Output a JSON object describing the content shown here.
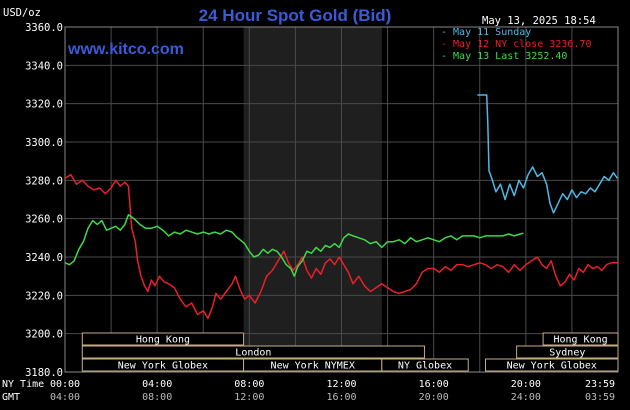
{
  "header": {
    "title": "24 Hour Spot Gold (Bid)",
    "website": "www.kitco.com",
    "datetime": "May 13, 2025 18:54",
    "unit_label": "USD/oz"
  },
  "legend": [
    {
      "label": "May 11 Sunday",
      "color": "#4fb8e6"
    },
    {
      "label": "May 12 NY close 3236.70",
      "color": "#e8202a"
    },
    {
      "label": "May 13 Last 3252.40",
      "color": "#3dd94a"
    }
  ],
  "colors": {
    "background": "#000000",
    "grid": "#4a4a4a",
    "axis_text": "#ffffff",
    "title": "#3a5bd8",
    "nymex_band": "#1f1f1f",
    "session_box": "#c7ad7f"
  },
  "sessions": {
    "row1": [
      {
        "label": "Hong Kong",
        "start": 0.75,
        "end": 7.75
      },
      {
        "label": "Hong Kong",
        "start": 20.75,
        "end": 24
      }
    ],
    "row2": [
      {
        "label": "London",
        "start": 0.75,
        "end": 15.6
      },
      {
        "label": "Sydney",
        "start": 19.6,
        "end": 24
      }
    ],
    "row3": [
      {
        "label": "New York Globex",
        "start": 0.75,
        "end": 7.75
      },
      {
        "label": "New York NYMEX",
        "start": 7.75,
        "end": 13.75
      },
      {
        "label": "NY Globex",
        "start": 13.75,
        "end": 17.5
      },
      {
        "label": "New York Globex",
        "start": 18.25,
        "end": 24
      }
    ]
  },
  "row_labels": {
    "ny_time": "NY Time",
    "gmt": "GMT"
  },
  "chart_data": {
    "type": "line",
    "title": "24 Hour Spot Gold (Bid)",
    "ylabel": "USD/oz",
    "ylim": [
      3180,
      3360
    ],
    "yticks": [
      "3360.0",
      "3340.0",
      "3320.0",
      "3300.0",
      "3280.0",
      "3260.0",
      "3240.0",
      "3220.0",
      "3200.0",
      "3180.0"
    ],
    "x_ticks_ny": [
      "00:00",
      "04:00",
      "08:00",
      "12:00",
      "16:00",
      "20:00",
      "23:59"
    ],
    "x_ticks_gmt": [
      "04:00",
      "08:00",
      "12:00",
      "16:00",
      "20:00",
      "24:00",
      "03:59"
    ],
    "xlim": [
      0,
      24
    ],
    "grid": true,
    "legend_position": "top-right",
    "series": [
      {
        "name": "May 11 Sunday",
        "color": "#4fb8e6",
        "points": [
          [
            17.9,
            3324.5
          ],
          [
            18.3,
            3324.5
          ],
          [
            18.35,
            3310
          ],
          [
            18.4,
            3285
          ],
          [
            18.55,
            3280
          ],
          [
            18.7,
            3274
          ],
          [
            18.9,
            3278
          ],
          [
            19.1,
            3270
          ],
          [
            19.3,
            3278
          ],
          [
            19.5,
            3272
          ],
          [
            19.7,
            3280
          ],
          [
            19.9,
            3276
          ],
          [
            20.1,
            3283
          ],
          [
            20.3,
            3287
          ],
          [
            20.5,
            3282
          ],
          [
            20.7,
            3284
          ],
          [
            20.9,
            3278
          ],
          [
            21.05,
            3268
          ],
          [
            21.2,
            3263
          ],
          [
            21.4,
            3268
          ],
          [
            21.6,
            3273
          ],
          [
            21.8,
            3270
          ],
          [
            22.0,
            3275
          ],
          [
            22.2,
            3271
          ],
          [
            22.4,
            3274
          ],
          [
            22.6,
            3273
          ],
          [
            22.8,
            3276
          ],
          [
            23.0,
            3274
          ],
          [
            23.2,
            3278
          ],
          [
            23.4,
            3282
          ],
          [
            23.6,
            3280
          ],
          [
            23.8,
            3284
          ],
          [
            23.98,
            3281
          ]
        ]
      },
      {
        "name": "May 12 NY close 3236.70",
        "color": "#e8202a",
        "points": [
          [
            0.0,
            3281
          ],
          [
            0.25,
            3283
          ],
          [
            0.5,
            3278
          ],
          [
            0.75,
            3280
          ],
          [
            1.0,
            3277
          ],
          [
            1.25,
            3275
          ],
          [
            1.5,
            3276
          ],
          [
            1.75,
            3273
          ],
          [
            2.0,
            3276
          ],
          [
            2.2,
            3280
          ],
          [
            2.4,
            3277
          ],
          [
            2.6,
            3279
          ],
          [
            2.75,
            3277
          ],
          [
            2.9,
            3255
          ],
          [
            3.05,
            3248
          ],
          [
            3.15,
            3238
          ],
          [
            3.3,
            3230
          ],
          [
            3.45,
            3225
          ],
          [
            3.6,
            3222
          ],
          [
            3.75,
            3228
          ],
          [
            3.9,
            3225
          ],
          [
            4.1,
            3230
          ],
          [
            4.3,
            3227
          ],
          [
            4.5,
            3226
          ],
          [
            4.75,
            3224
          ],
          [
            5.0,
            3218
          ],
          [
            5.25,
            3214
          ],
          [
            5.5,
            3216
          ],
          [
            5.75,
            3210
          ],
          [
            6.0,
            3212
          ],
          [
            6.2,
            3208
          ],
          [
            6.4,
            3214
          ],
          [
            6.55,
            3221
          ],
          [
            6.75,
            3218
          ],
          [
            7.0,
            3222
          ],
          [
            7.25,
            3226
          ],
          [
            7.4,
            3230
          ],
          [
            7.6,
            3223
          ],
          [
            7.8,
            3218
          ],
          [
            8.0,
            3220
          ],
          [
            8.25,
            3216
          ],
          [
            8.5,
            3222
          ],
          [
            8.75,
            3230
          ],
          [
            9.0,
            3233
          ],
          [
            9.25,
            3238
          ],
          [
            9.5,
            3243
          ],
          [
            9.7,
            3237
          ],
          [
            9.9,
            3233
          ],
          [
            10.1,
            3236
          ],
          [
            10.3,
            3240
          ],
          [
            10.5,
            3233
          ],
          [
            10.7,
            3229
          ],
          [
            10.9,
            3234
          ],
          [
            11.1,
            3231
          ],
          [
            11.3,
            3237
          ],
          [
            11.5,
            3239
          ],
          [
            11.7,
            3236
          ],
          [
            11.9,
            3240
          ],
          [
            12.1,
            3236
          ],
          [
            12.3,
            3232
          ],
          [
            12.5,
            3226
          ],
          [
            12.75,
            3230
          ],
          [
            13.0,
            3225
          ],
          [
            13.25,
            3222
          ],
          [
            13.5,
            3224
          ],
          [
            13.75,
            3226
          ],
          [
            14.0,
            3224
          ],
          [
            14.25,
            3222
          ],
          [
            14.5,
            3221
          ],
          [
            14.75,
            3222
          ],
          [
            15.0,
            3223
          ],
          [
            15.25,
            3226
          ],
          [
            15.5,
            3232
          ],
          [
            15.75,
            3234
          ],
          [
            16.0,
            3234
          ],
          [
            16.25,
            3232
          ],
          [
            16.5,
            3235
          ],
          [
            16.75,
            3233
          ],
          [
            17.0,
            3236
          ],
          [
            17.25,
            3236
          ],
          [
            17.5,
            3235
          ],
          [
            17.75,
            3236
          ],
          [
            18.0,
            3237
          ],
          [
            18.25,
            3236
          ],
          [
            18.5,
            3234
          ],
          [
            18.75,
            3236
          ],
          [
            19.0,
            3235
          ],
          [
            19.25,
            3232
          ],
          [
            19.5,
            3236
          ],
          [
            19.75,
            3233
          ],
          [
            20.0,
            3236
          ],
          [
            20.25,
            3238
          ],
          [
            20.5,
            3240
          ],
          [
            20.7,
            3236
          ],
          [
            20.9,
            3234
          ],
          [
            21.1,
            3238
          ],
          [
            21.3,
            3230
          ],
          [
            21.5,
            3225
          ],
          [
            21.7,
            3227
          ],
          [
            21.9,
            3231
          ],
          [
            22.1,
            3228
          ],
          [
            22.3,
            3234
          ],
          [
            22.5,
            3232
          ],
          [
            22.7,
            3236
          ],
          [
            22.9,
            3234
          ],
          [
            23.1,
            3235
          ],
          [
            23.3,
            3233
          ],
          [
            23.5,
            3236
          ],
          [
            23.7,
            3237
          ],
          [
            23.98,
            3237
          ]
        ]
      },
      {
        "name": "May 13 Last 3252.40",
        "color": "#3dd94a",
        "points": [
          [
            0.0,
            3237
          ],
          [
            0.2,
            3236
          ],
          [
            0.4,
            3238
          ],
          [
            0.6,
            3244
          ],
          [
            0.8,
            3248
          ],
          [
            1.0,
            3255
          ],
          [
            1.2,
            3259
          ],
          [
            1.4,
            3257
          ],
          [
            1.6,
            3259
          ],
          [
            1.8,
            3254
          ],
          [
            2.0,
            3255
          ],
          [
            2.2,
            3256
          ],
          [
            2.4,
            3254
          ],
          [
            2.6,
            3257
          ],
          [
            2.75,
            3262
          ],
          [
            3.0,
            3260
          ],
          [
            3.25,
            3257
          ],
          [
            3.5,
            3255
          ],
          [
            3.75,
            3255
          ],
          [
            4.0,
            3256
          ],
          [
            4.25,
            3254
          ],
          [
            4.5,
            3251
          ],
          [
            4.75,
            3253
          ],
          [
            5.0,
            3252
          ],
          [
            5.25,
            3254
          ],
          [
            5.5,
            3253
          ],
          [
            5.75,
            3252
          ],
          [
            6.0,
            3253
          ],
          [
            6.25,
            3252
          ],
          [
            6.5,
            3253
          ],
          [
            6.75,
            3252
          ],
          [
            7.0,
            3254
          ],
          [
            7.25,
            3253
          ],
          [
            7.4,
            3251
          ],
          [
            7.6,
            3249
          ],
          [
            7.8,
            3247
          ],
          [
            8.0,
            3243
          ],
          [
            8.2,
            3240
          ],
          [
            8.4,
            3241
          ],
          [
            8.6,
            3244
          ],
          [
            8.8,
            3242
          ],
          [
            9.0,
            3244
          ],
          [
            9.2,
            3243
          ],
          [
            9.4,
            3240
          ],
          [
            9.6,
            3236
          ],
          [
            9.8,
            3234
          ],
          [
            9.95,
            3230
          ],
          [
            10.1,
            3235
          ],
          [
            10.3,
            3238
          ],
          [
            10.5,
            3243
          ],
          [
            10.7,
            3242
          ],
          [
            10.9,
            3245
          ],
          [
            11.1,
            3243
          ],
          [
            11.3,
            3246
          ],
          [
            11.5,
            3245
          ],
          [
            11.7,
            3247
          ],
          [
            11.9,
            3245
          ],
          [
            12.1,
            3250
          ],
          [
            12.3,
            3252
          ],
          [
            12.5,
            3251
          ],
          [
            12.75,
            3250
          ],
          [
            13.0,
            3249
          ],
          [
            13.25,
            3247
          ],
          [
            13.5,
            3248
          ],
          [
            13.75,
            3245
          ],
          [
            14.0,
            3248
          ],
          [
            14.25,
            3248
          ],
          [
            14.5,
            3249
          ],
          [
            14.75,
            3247
          ],
          [
            15.0,
            3250
          ],
          [
            15.25,
            3248
          ],
          [
            15.5,
            3249
          ],
          [
            15.75,
            3250
          ],
          [
            16.0,
            3249
          ],
          [
            16.25,
            3248
          ],
          [
            16.5,
            3250
          ],
          [
            16.75,
            3251
          ],
          [
            17.0,
            3249
          ],
          [
            17.25,
            3251
          ],
          [
            17.5,
            3251
          ],
          [
            17.75,
            3251
          ],
          [
            18.0,
            3250
          ],
          [
            18.25,
            3251
          ],
          [
            18.5,
            3251
          ],
          [
            18.75,
            3251
          ],
          [
            19.0,
            3251
          ],
          [
            19.25,
            3252
          ],
          [
            19.5,
            3251
          ],
          [
            19.75,
            3252
          ],
          [
            19.9,
            3252.4
          ]
        ]
      }
    ]
  }
}
